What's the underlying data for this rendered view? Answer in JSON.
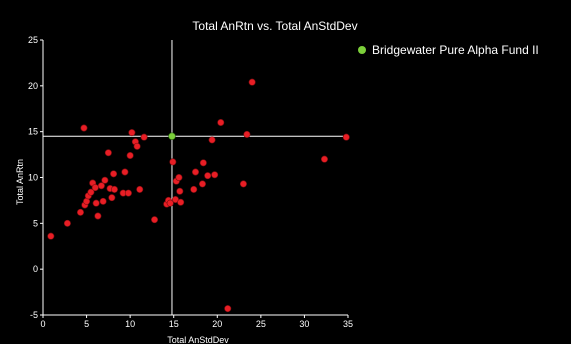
{
  "chart_data": {
    "type": "scatter",
    "title": "Total AnRtn vs. Total AnStdDev",
    "xlabel": "Total AnStdDev",
    "ylabel": "Total AnRtn",
    "xlim": [
      0,
      35
    ],
    "ylim": [
      -5,
      25
    ],
    "x_ticks": [
      0,
      5,
      10,
      15,
      20,
      25,
      30,
      35
    ],
    "y_ticks": [
      -5,
      0,
      5,
      10,
      15,
      20,
      25
    ],
    "grid": false,
    "legend_position": "right",
    "background": "#000000",
    "plot_background": "#000000",
    "axis_color": "#ffffff",
    "highlight": {
      "name": "Bridgewater Pure Alpha Fund II",
      "x": 14.8,
      "y": 14.5,
      "color": "#7ccf3a",
      "crosshair": true
    },
    "series": [
      {
        "color": "#e81e25",
        "points": [
          [
            0.9,
            3.6
          ],
          [
            2.8,
            5.0
          ],
          [
            4.3,
            6.2
          ],
          [
            4.7,
            15.4
          ],
          [
            4.8,
            7.0
          ],
          [
            5.0,
            7.4
          ],
          [
            5.2,
            8.0
          ],
          [
            5.5,
            8.4
          ],
          [
            5.7,
            9.4
          ],
          [
            6.0,
            8.9
          ],
          [
            6.1,
            7.2
          ],
          [
            6.3,
            5.8
          ],
          [
            6.7,
            9.1
          ],
          [
            6.9,
            7.4
          ],
          [
            7.1,
            9.7
          ],
          [
            7.5,
            12.7
          ],
          [
            7.7,
            8.8
          ],
          [
            7.9,
            7.8
          ],
          [
            8.1,
            10.4
          ],
          [
            8.2,
            8.7
          ],
          [
            9.2,
            8.3
          ],
          [
            9.4,
            10.6
          ],
          [
            9.8,
            8.3
          ],
          [
            10.0,
            12.4
          ],
          [
            10.2,
            14.9
          ],
          [
            10.6,
            13.9
          ],
          [
            10.8,
            13.4
          ],
          [
            11.1,
            8.7
          ],
          [
            11.6,
            14.4
          ],
          [
            12.8,
            5.4
          ],
          [
            14.2,
            7.1
          ],
          [
            14.4,
            7.5
          ],
          [
            14.6,
            7.2
          ],
          [
            14.9,
            11.7
          ],
          [
            15.2,
            7.6
          ],
          [
            15.3,
            9.6
          ],
          [
            15.6,
            10.0
          ],
          [
            15.7,
            8.5
          ],
          [
            15.8,
            7.3
          ],
          [
            17.3,
            8.7
          ],
          [
            17.5,
            10.6
          ],
          [
            18.3,
            9.3
          ],
          [
            18.4,
            11.6
          ],
          [
            18.9,
            10.2
          ],
          [
            19.4,
            14.1
          ],
          [
            19.7,
            10.3
          ],
          [
            20.4,
            16.0
          ],
          [
            21.2,
            -4.3
          ],
          [
            23.0,
            9.3
          ],
          [
            23.4,
            14.7
          ],
          [
            24.0,
            20.4
          ],
          [
            32.3,
            12.0
          ],
          [
            34.8,
            14.4
          ]
        ]
      }
    ]
  }
}
